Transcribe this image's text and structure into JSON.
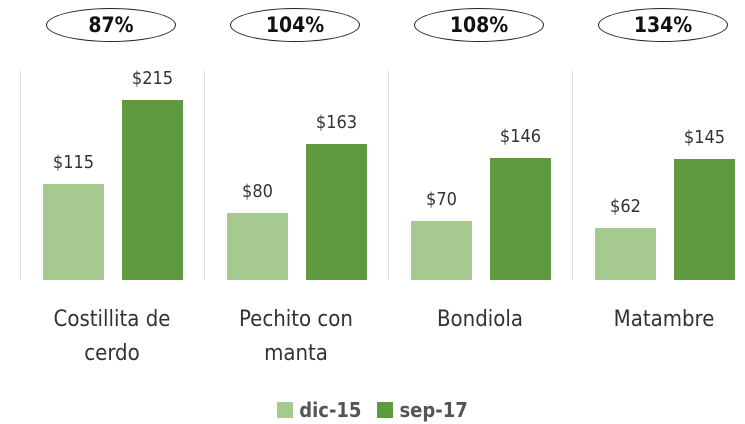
{
  "chart_data": {
    "type": "bar",
    "categories": [
      "Costillita de cerdo",
      "Pechito con manta",
      "Bondiola",
      "Matambre"
    ],
    "annotations": [
      "87%",
      "104%",
      "108%",
      "134%"
    ],
    "series": [
      {
        "name": "dic-15",
        "color": "#a6c98f",
        "values": [
          115,
          80,
          70,
          62
        ],
        "value_labels": [
          "$115",
          "$80",
          "$70",
          "$62"
        ]
      },
      {
        "name": "sep-17",
        "color": "#5f9a3e",
        "values": [
          215,
          163,
          146,
          145
        ],
        "value_labels": [
          "$215",
          "$163",
          "$146",
          "$145"
        ]
      }
    ]
  }
}
